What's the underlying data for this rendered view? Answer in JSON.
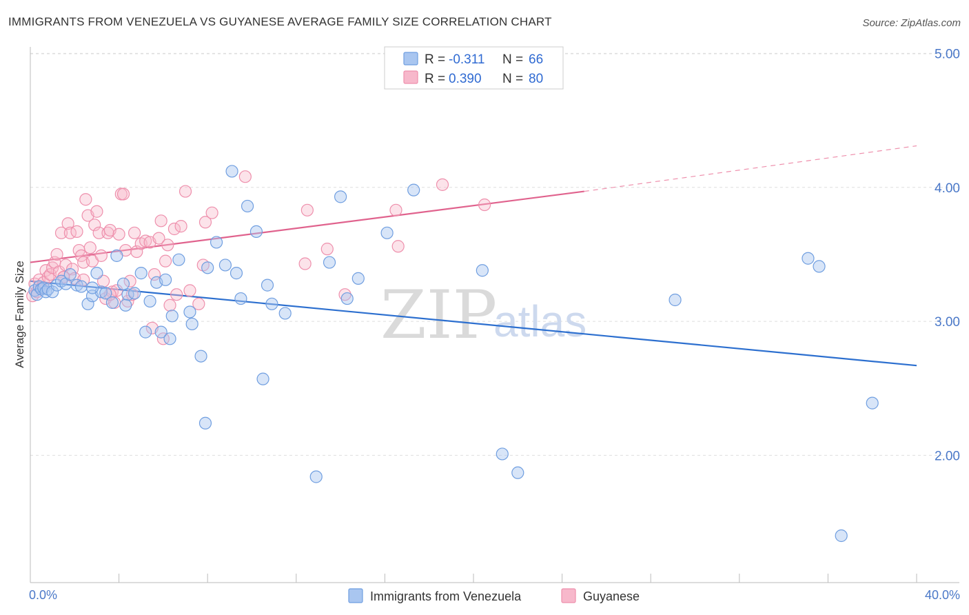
{
  "header": {
    "title": "IMMIGRANTS FROM VENEZUELA VS GUYANESE AVERAGE FAMILY SIZE CORRELATION CHART",
    "source": "Source: ZipAtlas.com"
  },
  "watermark": {
    "zip": "ZIP",
    "atlas": "atlas"
  },
  "legend": {
    "r_label": "R =",
    "n_label": "N =",
    "entries": [
      {
        "r": "-0.311",
        "n": "66"
      },
      {
        "r": "0.390",
        "n": "80"
      }
    ]
  },
  "colors": {
    "venezuela_fill": "#a9c6f0",
    "venezuela_stroke": "#6f9ee0",
    "venezuela_line": "#2c6fcf",
    "guyanese_fill": "#f7b8cb",
    "guyanese_stroke": "#ee8fac",
    "guyanese_line": "#e0628d",
    "grid": "#dddddd",
    "tick_label": "#4a78c8"
  },
  "chart_data": {
    "type": "scatter",
    "title": "IMMIGRANTS FROM VENEZUELA VS GUYANESE AVERAGE FAMILY SIZE CORRELATION CHART",
    "xlabel": "",
    "ylabel": "Average Family Size",
    "xlim": [
      0,
      40
    ],
    "ylim": [
      1.05,
      5.1
    ],
    "x_tick_labels": [
      {
        "value": 0,
        "label": "0.0%"
      },
      {
        "value": 40,
        "label": "40.0%"
      }
    ],
    "y_ticks": [
      {
        "value": 2,
        "label": "2.00"
      },
      {
        "value": 3,
        "label": "3.00"
      },
      {
        "value": 4,
        "label": "4.00"
      },
      {
        "value": 5,
        "label": "5.00"
      }
    ],
    "grid": true,
    "legend_position": "top-center",
    "series": [
      {
        "name": "Immigrants from Venezuela",
        "r": -0.311,
        "n": 66,
        "trend": {
          "x": [
            0,
            40
          ],
          "y": [
            3.3,
            2.67
          ]
        },
        "points": [
          [
            0.2,
            3.23
          ],
          [
            0.3,
            3.2
          ],
          [
            0.4,
            3.26
          ],
          [
            0.5,
            3.24
          ],
          [
            0.6,
            3.25
          ],
          [
            0.7,
            3.22
          ],
          [
            0.8,
            3.24
          ],
          [
            1.0,
            3.22
          ],
          [
            1.2,
            3.27
          ],
          [
            1.4,
            3.3
          ],
          [
            1.6,
            3.28
          ],
          [
            1.8,
            3.35
          ],
          [
            2.1,
            3.27
          ],
          [
            2.3,
            3.26
          ],
          [
            2.6,
            3.13
          ],
          [
            2.8,
            3.19
          ],
          [
            3.0,
            3.36
          ],
          [
            3.2,
            3.22
          ],
          [
            3.4,
            3.21
          ],
          [
            3.7,
            3.14
          ],
          [
            3.9,
            3.49
          ],
          [
            4.2,
            3.28
          ],
          [
            4.4,
            3.2
          ],
          [
            4.7,
            3.21
          ],
          [
            5.0,
            3.36
          ],
          [
            5.2,
            2.92
          ],
          [
            5.4,
            3.15
          ],
          [
            5.7,
            3.29
          ],
          [
            5.9,
            2.92
          ],
          [
            6.1,
            3.31
          ],
          [
            6.3,
            2.87
          ],
          [
            6.4,
            3.04
          ],
          [
            6.7,
            3.46
          ],
          [
            7.2,
            3.07
          ],
          [
            7.3,
            2.98
          ],
          [
            7.7,
            2.74
          ],
          [
            7.9,
            2.24
          ],
          [
            8.0,
            3.4
          ],
          [
            8.4,
            3.59
          ],
          [
            8.8,
            3.42
          ],
          [
            9.1,
            4.12
          ],
          [
            9.3,
            3.36
          ],
          [
            9.5,
            3.17
          ],
          [
            9.8,
            3.86
          ],
          [
            10.2,
            3.67
          ],
          [
            10.5,
            2.57
          ],
          [
            10.7,
            3.27
          ],
          [
            10.9,
            3.13
          ],
          [
            11.5,
            3.06
          ],
          [
            12.9,
            1.84
          ],
          [
            13.5,
            3.44
          ],
          [
            14.0,
            3.93
          ],
          [
            14.3,
            3.17
          ],
          [
            14.8,
            3.32
          ],
          [
            16.1,
            3.66
          ],
          [
            17.3,
            3.98
          ],
          [
            20.4,
            3.38
          ],
          [
            21.3,
            2.01
          ],
          [
            22.0,
            1.87
          ],
          [
            29.1,
            3.16
          ],
          [
            35.1,
            3.47
          ],
          [
            35.6,
            3.41
          ],
          [
            38.0,
            2.39
          ],
          [
            36.6,
            1.4
          ],
          [
            2.8,
            3.25
          ],
          [
            4.3,
            3.12
          ]
        ]
      },
      {
        "name": "Guyanese",
        "r": 0.39,
        "n": 80,
        "trend": {
          "x": [
            0,
            25
          ],
          "y": [
            3.44,
            3.97
          ]
        },
        "trend_extension": {
          "x": [
            25,
            40
          ],
          "y": [
            3.97,
            4.31
          ]
        },
        "points": [
          [
            0.1,
            3.19
          ],
          [
            0.2,
            3.28
          ],
          [
            0.3,
            3.22
          ],
          [
            0.4,
            3.31
          ],
          [
            0.5,
            3.25
          ],
          [
            0.6,
            3.29
          ],
          [
            0.7,
            3.38
          ],
          [
            0.8,
            3.33
          ],
          [
            0.9,
            3.35
          ],
          [
            1.0,
            3.4
          ],
          [
            1.1,
            3.44
          ],
          [
            1.2,
            3.5
          ],
          [
            1.3,
            3.37
          ],
          [
            1.4,
            3.66
          ],
          [
            1.5,
            3.33
          ],
          [
            1.6,
            3.42
          ],
          [
            1.7,
            3.73
          ],
          [
            1.8,
            3.66
          ],
          [
            1.9,
            3.39
          ],
          [
            2.0,
            3.32
          ],
          [
            2.1,
            3.67
          ],
          [
            2.2,
            3.53
          ],
          [
            2.3,
            3.49
          ],
          [
            2.4,
            3.44
          ],
          [
            2.5,
            3.91
          ],
          [
            2.6,
            3.79
          ],
          [
            2.7,
            3.55
          ],
          [
            2.8,
            3.45
          ],
          [
            2.9,
            3.72
          ],
          [
            3.0,
            3.82
          ],
          [
            3.1,
            3.66
          ],
          [
            3.2,
            3.49
          ],
          [
            3.3,
            3.3
          ],
          [
            3.4,
            3.17
          ],
          [
            3.5,
            3.66
          ],
          [
            3.6,
            3.68
          ],
          [
            3.7,
            3.22
          ],
          [
            3.8,
            3.14
          ],
          [
            3.9,
            3.23
          ],
          [
            4.0,
            3.65
          ],
          [
            4.1,
            3.95
          ],
          [
            4.2,
            3.95
          ],
          [
            4.3,
            3.53
          ],
          [
            4.4,
            3.15
          ],
          [
            4.5,
            3.3
          ],
          [
            4.6,
            3.2
          ],
          [
            4.7,
            3.66
          ],
          [
            4.8,
            3.52
          ],
          [
            5.0,
            3.58
          ],
          [
            5.2,
            3.6
          ],
          [
            5.4,
            3.59
          ],
          [
            5.5,
            2.95
          ],
          [
            5.6,
            3.35
          ],
          [
            5.8,
            3.62
          ],
          [
            5.9,
            3.75
          ],
          [
            6.0,
            2.87
          ],
          [
            6.1,
            3.45
          ],
          [
            6.2,
            3.57
          ],
          [
            6.3,
            3.12
          ],
          [
            6.5,
            3.69
          ],
          [
            6.6,
            3.2
          ],
          [
            6.8,
            3.71
          ],
          [
            7.0,
            3.97
          ],
          [
            7.2,
            3.23
          ],
          [
            7.6,
            3.13
          ],
          [
            7.8,
            3.42
          ],
          [
            7.9,
            3.74
          ],
          [
            8.2,
            3.81
          ],
          [
            9.7,
            4.08
          ],
          [
            12.4,
            3.43
          ],
          [
            12.5,
            3.83
          ],
          [
            13.4,
            3.54
          ],
          [
            14.2,
            3.2
          ],
          [
            16.5,
            3.83
          ],
          [
            16.6,
            3.56
          ],
          [
            18.6,
            4.02
          ],
          [
            20.5,
            3.87
          ],
          [
            1.5,
            3.33
          ],
          [
            2.4,
            3.31
          ],
          [
            3.6,
            3.2
          ]
        ]
      }
    ]
  },
  "bottom_legend": [
    {
      "label": "Immigrants from Venezuela"
    },
    {
      "label": "Guyanese"
    }
  ]
}
